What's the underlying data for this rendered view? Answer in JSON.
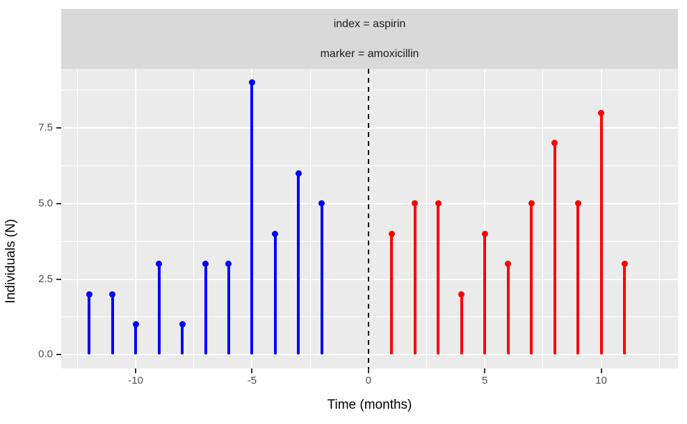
{
  "chart_data": {
    "type": "stem",
    "facet_labels": [
      "index = aspirin",
      "marker = amoxicillin"
    ],
    "xlabel": "Time (months)",
    "ylabel": "Individuals (N)",
    "x_ticks": [
      {
        "value": -10,
        "label": "-10"
      },
      {
        "value": -5,
        "label": "-5"
      },
      {
        "value": 0,
        "label": "0"
      },
      {
        "value": 5,
        "label": "5"
      },
      {
        "value": 10,
        "label": "10"
      }
    ],
    "y_ticks": [
      {
        "value": 0,
        "label": "0.0"
      },
      {
        "value": 2.5,
        "label": "2.5"
      },
      {
        "value": 5,
        "label": "5.0"
      },
      {
        "value": 7.5,
        "label": "7.5"
      }
    ],
    "xlim": [
      -13.2,
      13.3
    ],
    "ylim": [
      -0.45,
      9.45
    ],
    "grid": true,
    "legend": "none",
    "reference_line": {
      "x": 0,
      "style": "dashed",
      "color": "#000000"
    },
    "series": [
      {
        "name": "index = aspirin",
        "color": "#0000FF",
        "points": [
          [
            -12,
            2
          ],
          [
            -11,
            2
          ],
          [
            -10,
            1
          ],
          [
            -9,
            3
          ],
          [
            -8,
            1
          ],
          [
            -7,
            3
          ],
          [
            -6,
            3
          ],
          [
            -5,
            9
          ],
          [
            -4,
            4
          ],
          [
            -3,
            6
          ],
          [
            -2,
            5
          ]
        ]
      },
      {
        "name": "marker = amoxicillin",
        "color": "#FF0000",
        "points": [
          [
            1,
            4
          ],
          [
            2,
            5
          ],
          [
            3,
            5
          ],
          [
            4,
            2
          ],
          [
            5,
            4
          ],
          [
            6,
            3
          ],
          [
            7,
            5
          ],
          [
            8,
            7
          ],
          [
            9,
            5
          ],
          [
            10,
            8
          ],
          [
            11,
            3
          ]
        ]
      }
    ],
    "colors": {
      "panel_bg": "#EBEBEB",
      "strip_bg": "#D9D9D9",
      "grid": "#FFFFFF",
      "tick_label": "#4D4D4D",
      "axis_title": "#000000",
      "tick_mark": "#333333"
    }
  }
}
